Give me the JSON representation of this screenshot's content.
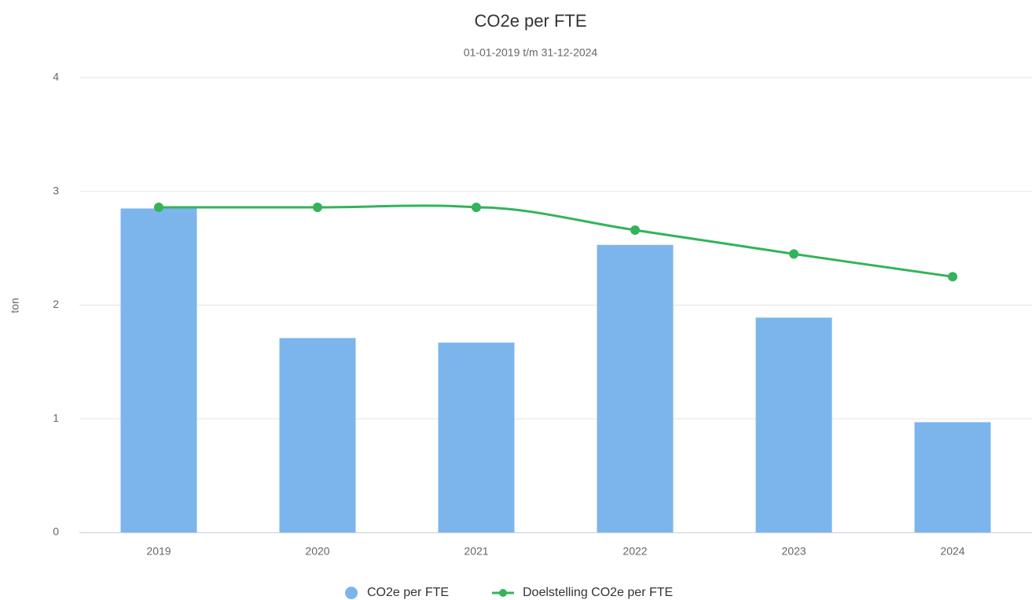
{
  "chart_data": {
    "type": "bar",
    "title": "CO2e per FTE",
    "subtitle": "01-01-2019 t/m 31-12-2024",
    "y_axis_label": "ton",
    "categories": [
      "2019",
      "2020",
      "2021",
      "2022",
      "2023",
      "2024"
    ],
    "series": [
      {
        "name": "CO2e per FTE",
        "type": "bar",
        "color": "#7cb5ec",
        "values": [
          2.85,
          1.71,
          1.67,
          2.53,
          1.89,
          0.97
        ]
      },
      {
        "name": "Doelstelling CO2e per FTE",
        "type": "line",
        "color": "#33b35a",
        "values": [
          2.86,
          2.86,
          2.86,
          2.66,
          2.45,
          2.25
        ]
      }
    ],
    "ylim": [
      0,
      4
    ],
    "yticks": [
      0,
      1,
      2,
      3,
      4
    ],
    "grid": true,
    "legend": "bottom"
  }
}
